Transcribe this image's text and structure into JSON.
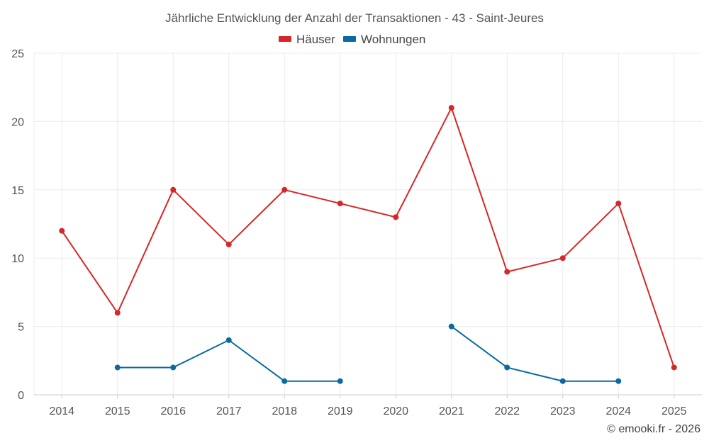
{
  "chart_data": {
    "type": "line",
    "title": "Jährliche Entwicklung der Anzahl der Transaktionen - 43 - Saint-Jeures",
    "categories": [
      "2014",
      "2015",
      "2016",
      "2017",
      "2018",
      "2019",
      "2020",
      "2021",
      "2022",
      "2023",
      "2024",
      "2025"
    ],
    "ylim": [
      0,
      25
    ],
    "yticks": [
      "0",
      "5",
      "10",
      "15",
      "20",
      "25"
    ],
    "grid": true,
    "legend_position": "top-center",
    "series": [
      {
        "name": "Häuser",
        "color": "#d62728",
        "values": [
          12,
          6,
          15,
          11,
          15,
          14,
          13,
          21,
          9,
          10,
          14,
          2
        ]
      },
      {
        "name": "Wohnungen",
        "color": "#0a6aa1",
        "values": [
          null,
          2,
          2,
          4,
          1,
          1,
          null,
          5,
          2,
          1,
          1,
          null
        ]
      }
    ],
    "copyright": "© emooki.fr - 2026"
  }
}
